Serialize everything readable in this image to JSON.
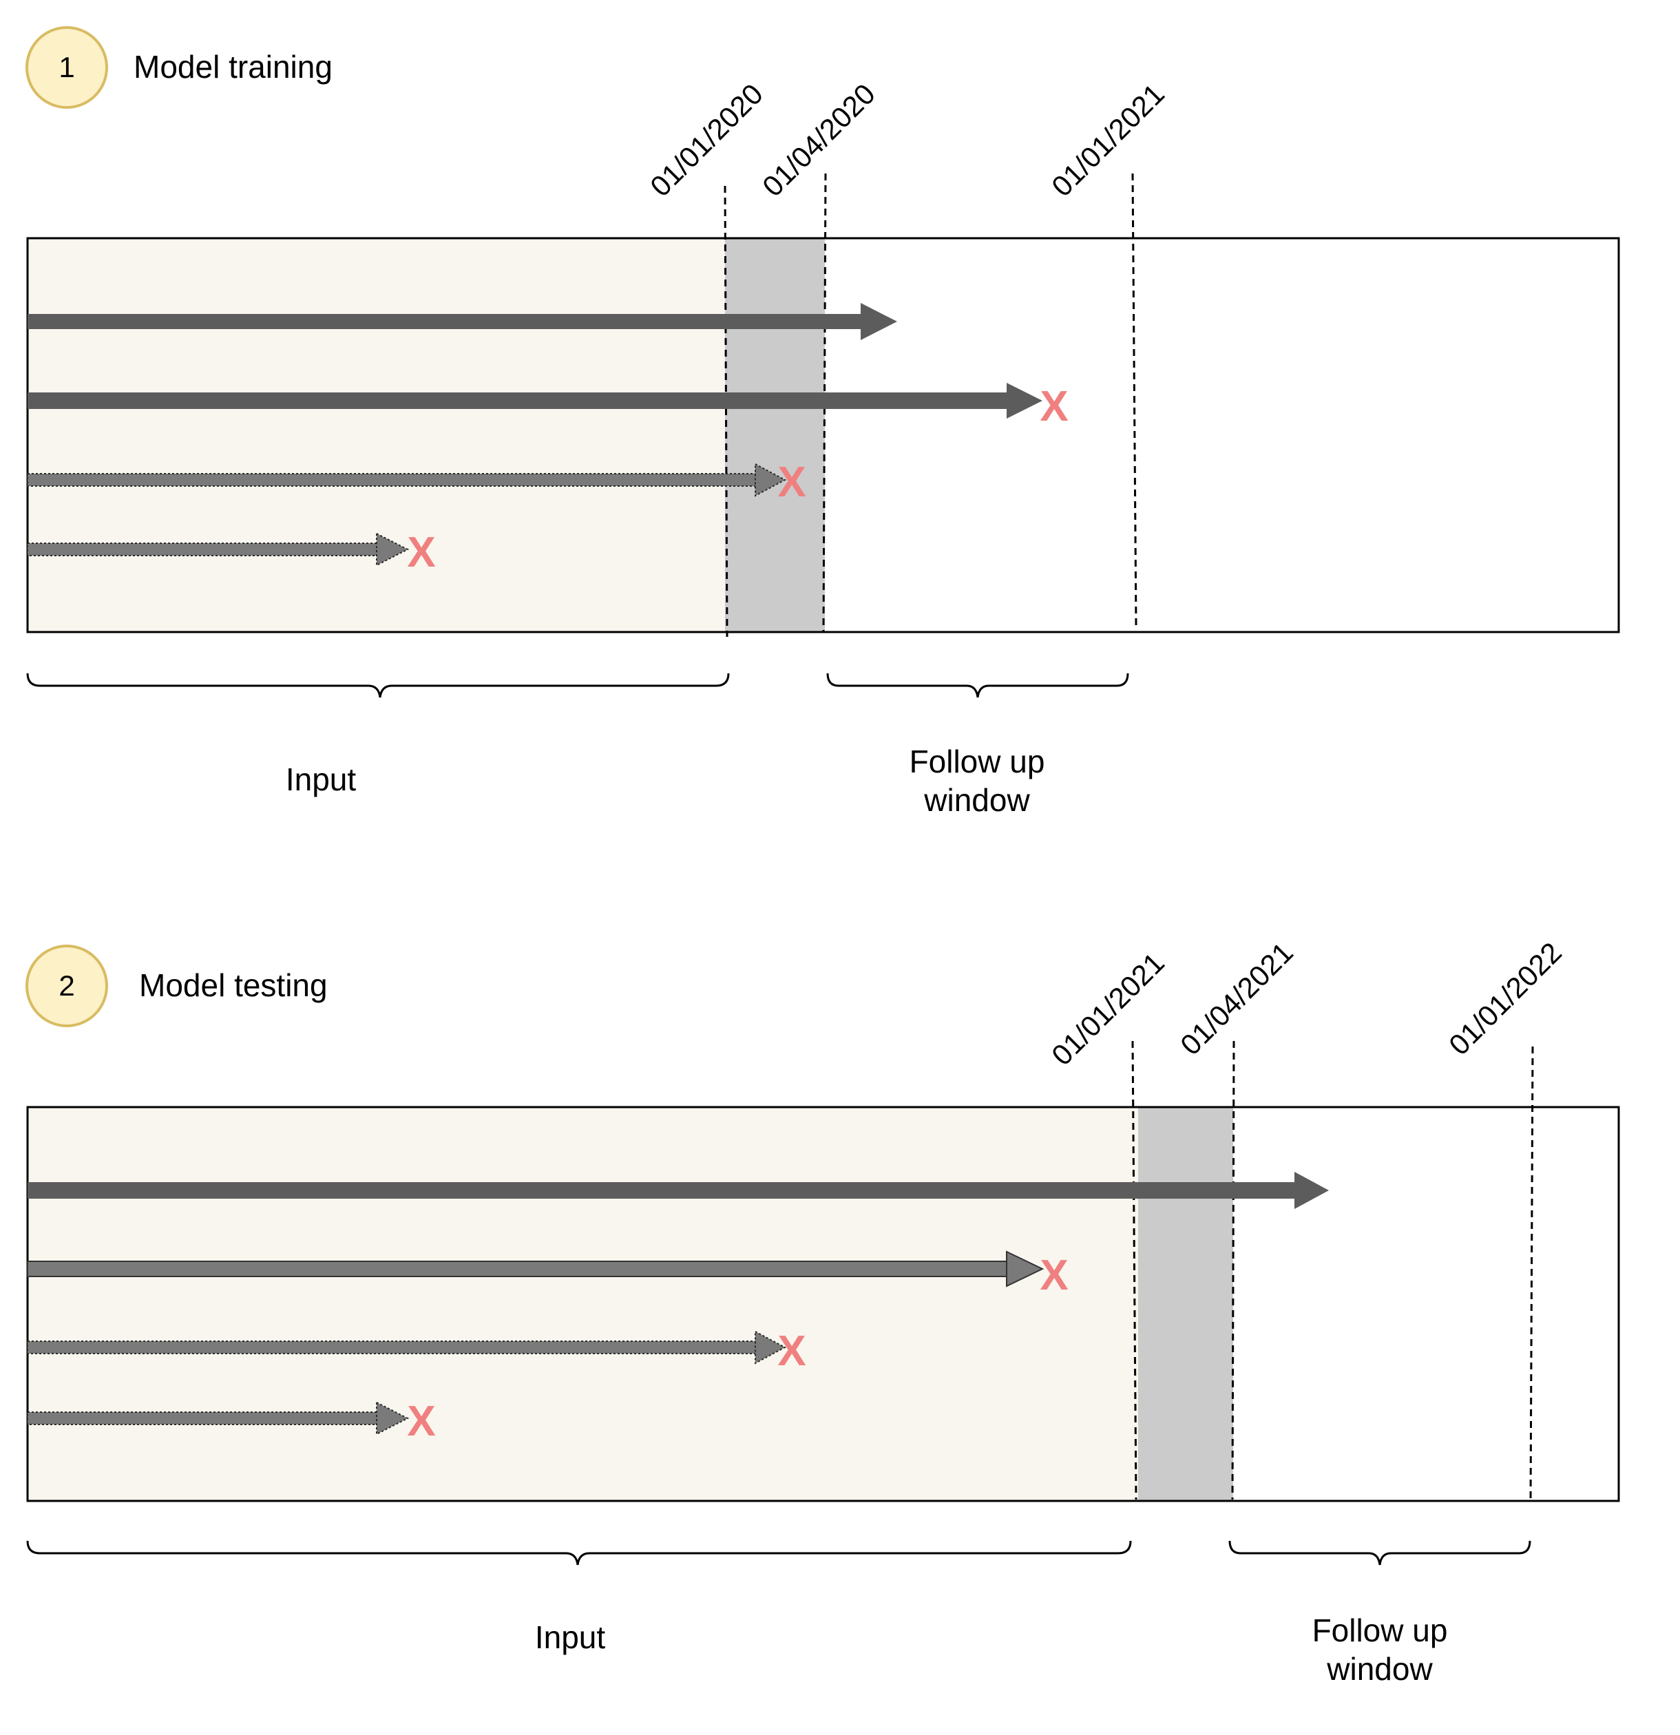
{
  "colors": {
    "input_region": "#f8f6ee",
    "gap_region": "#cbcbcb",
    "arrow_solid": "#5c5c5c",
    "arrow_dotted": "#7a7a7a",
    "event_x": "#f08080",
    "badge_fill": "#fdf1c8",
    "badge_stroke": "#d8bc62"
  },
  "panels": [
    {
      "number": "1",
      "title": "Model training",
      "dates": [
        "01/01/2020",
        "01/04/2020",
        "01/01/2021"
      ],
      "input_label": "Input",
      "followup_label": [
        "Follow up",
        "window"
      ],
      "event_marker": "X",
      "trajectories": [
        {
          "style": "solid",
          "event": false
        },
        {
          "style": "solid",
          "event": true
        },
        {
          "style": "dotted",
          "event": true
        },
        {
          "style": "dotted",
          "event": true
        }
      ]
    },
    {
      "number": "2",
      "title": "Model testing",
      "dates": [
        "01/01/2021",
        "01/04/2021",
        "01/01/2022"
      ],
      "input_label": "Input",
      "followup_label": [
        "Follow up",
        "window"
      ],
      "event_marker": "X",
      "trajectories": [
        {
          "style": "solid",
          "event": false
        },
        {
          "style": "solid",
          "event": true
        },
        {
          "style": "dotted",
          "event": true
        },
        {
          "style": "dotted",
          "event": true
        }
      ]
    }
  ]
}
